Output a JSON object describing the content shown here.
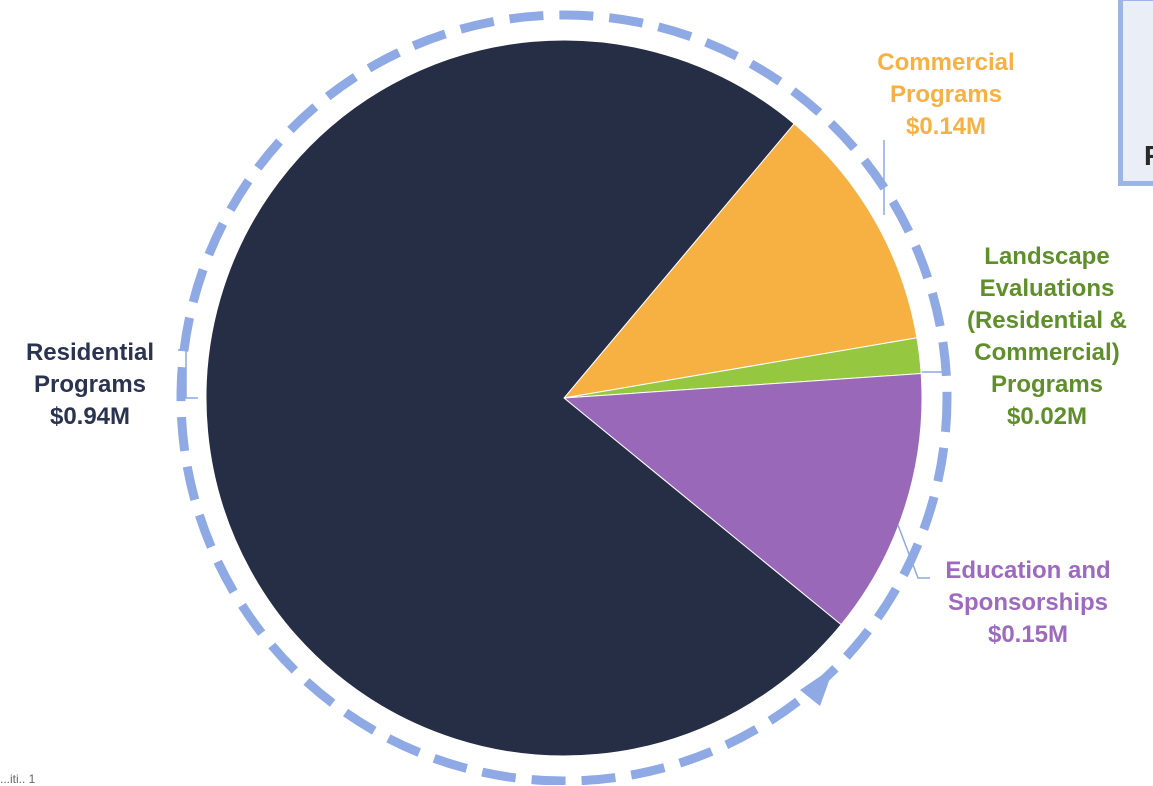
{
  "chart_data": {
    "type": "pie",
    "slices": [
      {
        "label_lines": [
          "Commercial",
          "Programs",
          "$0.14M"
        ],
        "value": 0.14,
        "color": "#f6b142",
        "label_color": "#f6b142"
      },
      {
        "label_lines": [
          "Landscape",
          "Evaluations",
          "(Residential &",
          "Commercial)",
          "Programs",
          "$0.02M"
        ],
        "value": 0.02,
        "color": "#95c840",
        "label_color": "#5f8f2a"
      },
      {
        "label_lines": [
          "Education and",
          "Sponsorships",
          "$0.15M"
        ],
        "value": 0.15,
        "color": "#9a68b8",
        "label_color": "#9d6abf"
      },
      {
        "label_lines": [
          "Residential",
          "Programs",
          "$0.94M"
        ],
        "value": 0.94,
        "color": "#262e46",
        "label_color": "#2a3350"
      }
    ]
  },
  "partial_panel_text": "F",
  "footnote_text": "...iti.. 1"
}
